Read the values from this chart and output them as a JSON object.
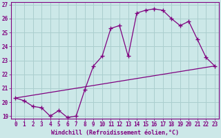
{
  "xlabel": "Windchill (Refroidissement éolien,°C)",
  "xlim": [
    -0.5,
    23.5
  ],
  "ylim": [
    18.8,
    27.2
  ],
  "yticks": [
    19,
    20,
    21,
    22,
    23,
    24,
    25,
    26,
    27
  ],
  "xticks": [
    0,
    1,
    2,
    3,
    4,
    5,
    6,
    7,
    8,
    9,
    10,
    11,
    12,
    13,
    14,
    15,
    16,
    17,
    18,
    19,
    20,
    21,
    22,
    23
  ],
  "curve1_x": [
    0,
    1,
    2,
    3,
    4,
    5,
    6,
    7,
    8,
    9,
    10,
    11,
    12,
    13,
    14,
    15,
    16,
    17,
    18,
    19,
    20,
    21,
    22,
    23
  ],
  "curve1_y": [
    20.3,
    20.1,
    19.7,
    19.6,
    19.0,
    19.4,
    18.9,
    19.0,
    20.9,
    22.6,
    23.3,
    25.3,
    25.5,
    23.3,
    26.4,
    26.6,
    26.7,
    26.6,
    26.0,
    25.5,
    25.8,
    24.5,
    23.2,
    22.6
  ],
  "line_x": [
    0,
    23
  ],
  "line_y": [
    20.3,
    22.6
  ],
  "color": "#7f007f",
  "bg_color": "#cce8e8",
  "grid_color": "#aacece"
}
